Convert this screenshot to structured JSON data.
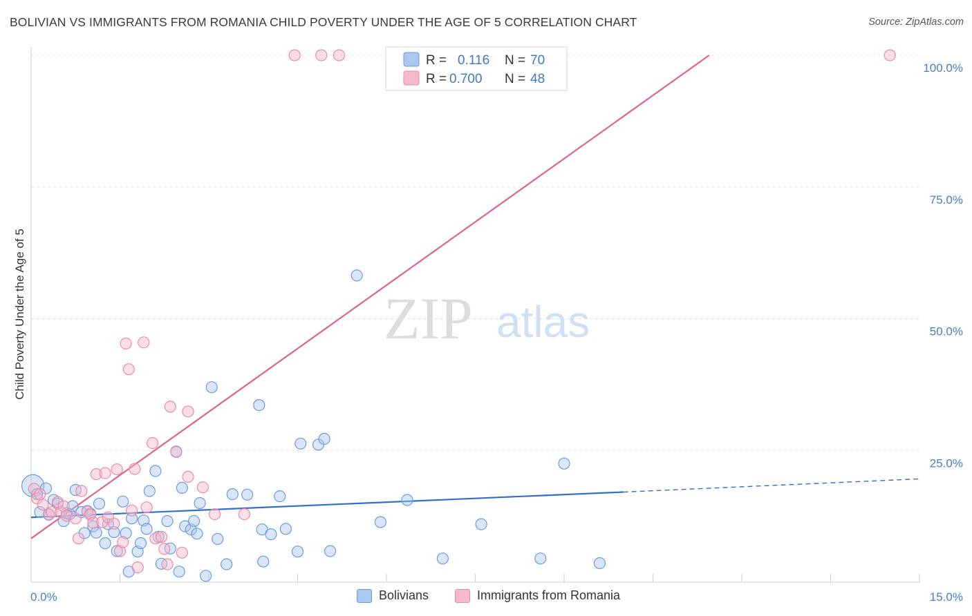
{
  "header": {
    "title": "BOLIVIAN VS IMMIGRANTS FROM ROMANIA CHILD POVERTY UNDER THE AGE OF 5 CORRELATION CHART",
    "source": "Source: ZipAtlas.com"
  },
  "watermark": {
    "zip": "ZIP",
    "atlas": "atlas"
  },
  "legend_box": {
    "rows": [
      {
        "r_label": "R =",
        "r_value": "0.116",
        "n_label": "N =",
        "n_value": "70"
      },
      {
        "r_label": "R =",
        "r_value": "0.700",
        "n_label": "N =",
        "n_value": "48"
      }
    ]
  },
  "bottom_legend": {
    "items": [
      {
        "label": "Bolivians"
      },
      {
        "label": "Immigrants from Romania"
      }
    ]
  },
  "colors": {
    "blue_fill": "#a9c8f0",
    "blue_stroke": "#6a9bdc",
    "blue_line": "#2f6fcb",
    "pink_fill": "#f6b8cb",
    "pink_stroke": "#e98aa8",
    "pink_line": "#e0628a",
    "tick_color": "#4a7cc4"
  },
  "chart_data": {
    "type": "scatter",
    "title": "BOLIVIAN VS IMMIGRANTS FROM ROMANIA CHILD POVERTY UNDER THE AGE OF 5 CORRELATION CHART",
    "xlabel": "",
    "ylabel": "Child Poverty Under the Age of 5",
    "xlim": [
      0,
      15
    ],
    "ylim": [
      0,
      100
    ],
    "x_ticks": [
      {
        "value": 0,
        "label": "0.0%"
      },
      {
        "value": 15,
        "label": "15.0%"
      }
    ],
    "y_ticks": [
      {
        "value": 25,
        "label": "25.0%"
      },
      {
        "value": 50,
        "label": "50.0%"
      },
      {
        "value": 75,
        "label": "75.0%"
      },
      {
        "value": 100,
        "label": "100.0%"
      }
    ],
    "series": [
      {
        "name": "Bolivians",
        "R": 0.116,
        "N": 70,
        "trend": {
          "x0": 0,
          "y0": 12.3,
          "x1": 10.0,
          "y1": 17.1,
          "dash_to_x": 15,
          "dash_to_y": 19.6
        },
        "points": [
          [
            0.03,
            18.3
          ],
          [
            0.1,
            16.7
          ],
          [
            0.15,
            13.3
          ],
          [
            0.25,
            17.8
          ],
          [
            0.3,
            12.8
          ],
          [
            0.38,
            15.6
          ],
          [
            0.45,
            14.9
          ],
          [
            0.55,
            11.6
          ],
          [
            0.6,
            13.1
          ],
          [
            0.65,
            12.9
          ],
          [
            0.7,
            14.4
          ],
          [
            0.75,
            17.5
          ],
          [
            0.85,
            13.3
          ],
          [
            0.9,
            9.3
          ],
          [
            0.95,
            13.5
          ],
          [
            1.0,
            13.0
          ],
          [
            1.05,
            10.6
          ],
          [
            1.1,
            9.4
          ],
          [
            1.15,
            14.9
          ],
          [
            1.25,
            7.4
          ],
          [
            1.3,
            11.0
          ],
          [
            1.4,
            9.5
          ],
          [
            1.45,
            5.9
          ],
          [
            1.55,
            15.3
          ],
          [
            1.6,
            9.3
          ],
          [
            1.65,
            2.0
          ],
          [
            1.7,
            12.1
          ],
          [
            1.8,
            5.8
          ],
          [
            1.85,
            7.4
          ],
          [
            1.9,
            11.7
          ],
          [
            1.95,
            10.1
          ],
          [
            2.0,
            17.3
          ],
          [
            2.1,
            21.1
          ],
          [
            2.15,
            8.6
          ],
          [
            2.2,
            3.5
          ],
          [
            2.3,
            11.6
          ],
          [
            2.35,
            6.4
          ],
          [
            2.45,
            24.8
          ],
          [
            2.5,
            2.0
          ],
          [
            2.55,
            17.9
          ],
          [
            2.6,
            10.6
          ],
          [
            2.7,
            10.0
          ],
          [
            2.75,
            11.6
          ],
          [
            2.8,
            9.2
          ],
          [
            2.85,
            15.0
          ],
          [
            2.95,
            1.2
          ],
          [
            3.05,
            37.0
          ],
          [
            3.15,
            8.2
          ],
          [
            3.3,
            3.4
          ],
          [
            3.4,
            16.7
          ],
          [
            3.65,
            16.6
          ],
          [
            3.85,
            33.6
          ],
          [
            3.9,
            10.0
          ],
          [
            3.92,
            3.9
          ],
          [
            4.05,
            9.1
          ],
          [
            4.2,
            16.3
          ],
          [
            4.3,
            10.1
          ],
          [
            4.5,
            5.8
          ],
          [
            4.55,
            26.3
          ],
          [
            4.85,
            26.1
          ],
          [
            4.95,
            27.2
          ],
          [
            5.05,
            5.9
          ],
          [
            5.5,
            58.2
          ],
          [
            5.9,
            11.4
          ],
          [
            6.35,
            15.6
          ],
          [
            6.95,
            4.5
          ],
          [
            7.6,
            11.0
          ],
          [
            8.6,
            4.5
          ],
          [
            9.0,
            22.5
          ],
          [
            9.6,
            3.6
          ]
        ]
      },
      {
        "name": "Immigrants from Romania",
        "R": 0.7,
        "N": 48,
        "trend": {
          "x0": 0,
          "y0": 8.3,
          "x1": 11.45,
          "y1": 100
        },
        "points": [
          [
            0.05,
            17.7
          ],
          [
            0.1,
            15.9
          ],
          [
            0.15,
            16.7
          ],
          [
            0.2,
            14.7
          ],
          [
            0.3,
            12.9
          ],
          [
            0.35,
            13.3
          ],
          [
            0.45,
            15.2
          ],
          [
            0.5,
            13.3
          ],
          [
            0.55,
            14.4
          ],
          [
            0.6,
            12.6
          ],
          [
            0.75,
            12.1
          ],
          [
            0.8,
            8.3
          ],
          [
            0.85,
            17.3
          ],
          [
            0.95,
            13.4
          ],
          [
            1.0,
            12.8
          ],
          [
            1.05,
            11.3
          ],
          [
            1.1,
            20.5
          ],
          [
            1.2,
            11.4
          ],
          [
            1.25,
            20.7
          ],
          [
            1.3,
            12.3
          ],
          [
            1.4,
            11.1
          ],
          [
            1.45,
            21.4
          ],
          [
            1.5,
            5.9
          ],
          [
            1.55,
            7.6
          ],
          [
            1.6,
            45.3
          ],
          [
            1.65,
            40.4
          ],
          [
            1.7,
            13.6
          ],
          [
            1.75,
            21.5
          ],
          [
            1.8,
            2.8
          ],
          [
            1.9,
            45.5
          ],
          [
            1.95,
            14.2
          ],
          [
            2.05,
            26.4
          ],
          [
            2.1,
            8.3
          ],
          [
            2.2,
            8.6
          ],
          [
            2.25,
            6.3
          ],
          [
            2.3,
            3.4
          ],
          [
            2.35,
            33.3
          ],
          [
            2.45,
            24.7
          ],
          [
            2.55,
            5.6
          ],
          [
            2.65,
            20.0
          ],
          [
            2.65,
            32.4
          ],
          [
            2.9,
            18.0
          ],
          [
            3.1,
            12.9
          ],
          [
            3.6,
            12.9
          ],
          [
            4.45,
            100
          ],
          [
            4.9,
            100
          ],
          [
            5.2,
            100
          ],
          [
            14.5,
            100
          ]
        ]
      }
    ]
  }
}
